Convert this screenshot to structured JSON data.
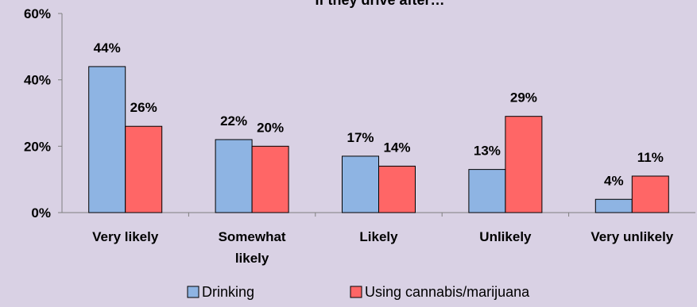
{
  "chart_data": {
    "type": "bar",
    "title": "If they drive after…",
    "categories": [
      "Very likely",
      "Somewhat likely",
      "Likely",
      "Unlikely",
      "Very unlikely"
    ],
    "category_lines": [
      [
        "Very likely"
      ],
      [
        "Somewhat",
        "likely"
      ],
      [
        "Likely"
      ],
      [
        "Unlikely"
      ],
      [
        "Very unlikely"
      ]
    ],
    "series": [
      {
        "name": "Drinking",
        "values": [
          44,
          22,
          17,
          13,
          4
        ],
        "labels": [
          "44%",
          "22%",
          "17%",
          "13%",
          "4%"
        ],
        "color": "#8eb4e3"
      },
      {
        "name": "Using cannabis/marijuana",
        "values": [
          26,
          20,
          14,
          29,
          11
        ],
        "labels": [
          "26%",
          "20%",
          "14%",
          "29%",
          "11%"
        ],
        "color": "#ff6666"
      }
    ],
    "ylim": [
      0,
      60
    ],
    "yticks": [
      0,
      20,
      40,
      60
    ],
    "ytick_labels": [
      "0%",
      "20%",
      "40%",
      "60%"
    ],
    "xlabel": "",
    "ylabel": "",
    "grid": false,
    "legend_position": "bottom",
    "background": "#d9d1e4"
  }
}
